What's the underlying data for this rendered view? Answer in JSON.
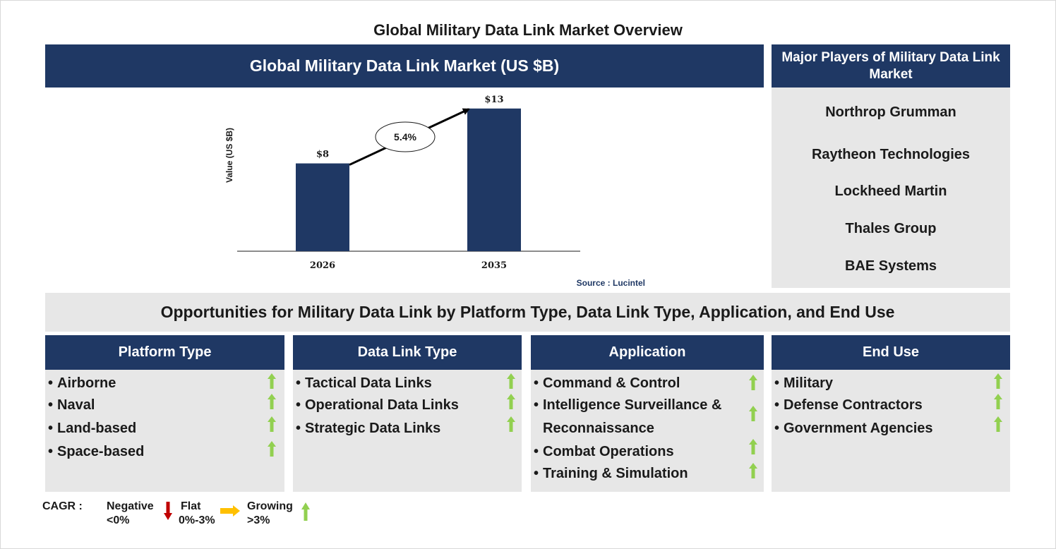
{
  "page_title": "Global Military Data Link Market Overview",
  "chart_header": "Global Military Data Link Market (US $B)",
  "chart_data": {
    "type": "bar",
    "categories": [
      "2026",
      "2035"
    ],
    "values": [
      8,
      13
    ],
    "value_labels": [
      "$8",
      "$13"
    ],
    "title": "Global Military Data Link Market (US $B)",
    "xlabel": "",
    "ylabel": "Value (US $B)",
    "ylim": [
      0,
      13.5
    ],
    "cagr_label": "5.4%",
    "bar_color": "#1f3864",
    "grid": false,
    "source": "Source : Lucintel"
  },
  "players": {
    "title": "Major Players of Military Data Link Market",
    "items": [
      "Northrop Grumman",
      "Raytheon Technologies",
      "Lockheed Martin",
      "Thales Group",
      "BAE Systems"
    ]
  },
  "opportunities_title": "Opportunities for Military Data Link by Platform Type, Data Link Type, Application, and End Use",
  "segments": [
    {
      "title": "Platform Type",
      "items": [
        {
          "label": "Airborne",
          "trend": "growing"
        },
        {
          "label": "Naval",
          "trend": "growing"
        },
        {
          "label": "Land-based",
          "trend": "growing"
        },
        {
          "label": "Space-based",
          "trend": "growing"
        }
      ]
    },
    {
      "title": "Data Link Type",
      "items": [
        {
          "label": "Tactical Data Links",
          "trend": "growing"
        },
        {
          "label": "Operational Data Links",
          "trend": "growing"
        },
        {
          "label": "Strategic Data Links",
          "trend": "growing"
        }
      ]
    },
    {
      "title": "Application",
      "items": [
        {
          "label": "Command & Control",
          "trend": "growing"
        },
        {
          "label": "Intelligence Surveillance &",
          "label_line2": "Reconnaissance",
          "trend": "growing"
        },
        {
          "label": "Combat Operations",
          "trend": "growing"
        },
        {
          "label": "Training & Simulation",
          "trend": "growing"
        }
      ]
    },
    {
      "title": "End Use",
      "items": [
        {
          "label": "Military",
          "trend": "growing"
        },
        {
          "label": "Defense Contractors",
          "trend": "growing"
        },
        {
          "label": "Government Agencies",
          "trend": "growing"
        }
      ]
    }
  ],
  "legend": {
    "label": "CAGR :",
    "negative": {
      "name": "Negative",
      "range": "<0%",
      "color": "#c00000"
    },
    "flat": {
      "name": "Flat",
      "range": "0%-3%",
      "color": "#ffc000"
    },
    "growing": {
      "name": "Growing",
      "range": ">3%",
      "color": "#92d050"
    }
  }
}
